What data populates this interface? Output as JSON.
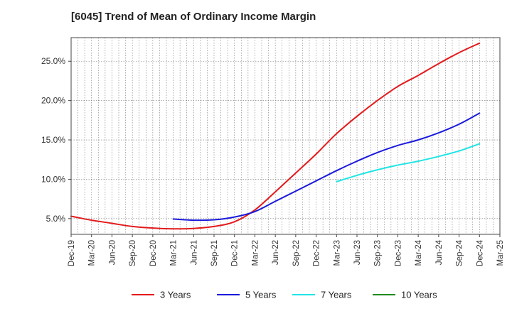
{
  "chart_data": {
    "type": "line",
    "title": "[6045]  Trend of Mean of Ordinary Income Margin",
    "xlabel": "",
    "ylabel": "",
    "x_ticks": [
      "Dec-19",
      "Mar-20",
      "Jun-20",
      "Sep-20",
      "Dec-20",
      "Mar-21",
      "Jun-21",
      "Sep-21",
      "Dec-21",
      "Mar-22",
      "Jun-22",
      "Sep-22",
      "Dec-22",
      "Mar-23",
      "Jun-23",
      "Sep-23",
      "Dec-23",
      "Mar-24",
      "Jun-24",
      "Sep-24",
      "Dec-24",
      "Mar-25"
    ],
    "y_ticks": [
      "5.0%",
      "10.0%",
      "15.0%",
      "20.0%",
      "25.0%"
    ],
    "y_tick_values": [
      5,
      10,
      15,
      20,
      25
    ],
    "ylim": [
      3.0,
      28.0
    ],
    "grid": true,
    "legend_position": "bottom",
    "series": [
      {
        "name": "3 Years",
        "color": "#e31a1c",
        "x": [
          "Dec-19",
          "Mar-20",
          "Jun-20",
          "Sep-20",
          "Dec-20",
          "Mar-21",
          "Jun-21",
          "Sep-21",
          "Dec-21",
          "Mar-22",
          "Jun-22",
          "Sep-22",
          "Dec-22",
          "Mar-23",
          "Jun-23",
          "Sep-23",
          "Dec-23",
          "Mar-24",
          "Jun-24",
          "Sep-24",
          "Dec-24"
        ],
        "values": [
          5.3,
          4.8,
          4.4,
          4.0,
          3.8,
          3.7,
          3.75,
          4.0,
          4.6,
          6.1,
          8.4,
          10.8,
          13.2,
          15.8,
          18.0,
          20.0,
          21.8,
          23.2,
          24.7,
          26.1,
          27.3
        ]
      },
      {
        "name": "5 Years",
        "color": "#1a1adb",
        "x": [
          "Mar-21",
          "Jun-21",
          "Sep-21",
          "Dec-21",
          "Mar-22",
          "Jun-22",
          "Sep-22",
          "Dec-22",
          "Mar-23",
          "Jun-23",
          "Sep-23",
          "Dec-23",
          "Mar-24",
          "Jun-24",
          "Sep-24",
          "Dec-24"
        ],
        "values": [
          4.95,
          4.8,
          4.85,
          5.2,
          5.9,
          7.2,
          8.5,
          9.8,
          11.1,
          12.3,
          13.4,
          14.3,
          15.0,
          15.9,
          17.0,
          18.4
        ]
      },
      {
        "name": "7 Years",
        "color": "#22e5e5",
        "x": [
          "Mar-23",
          "Jun-23",
          "Sep-23",
          "Dec-23",
          "Mar-24",
          "Jun-24",
          "Sep-24",
          "Dec-24"
        ],
        "values": [
          9.7,
          10.5,
          11.2,
          11.8,
          12.3,
          12.9,
          13.6,
          14.5
        ]
      },
      {
        "name": "10 Years",
        "color": "#228b22",
        "x": [],
        "values": []
      }
    ]
  }
}
